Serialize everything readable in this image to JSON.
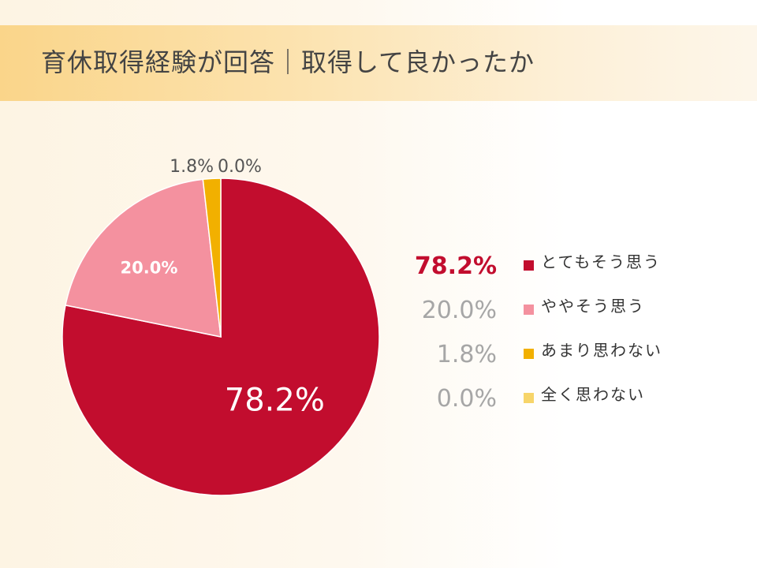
{
  "title": "育休取得経験が回答｜取得して良かったか",
  "colors": {
    "very_much": "#c20d2e",
    "somewhat": "#f4919f",
    "not_much": "#f2b000",
    "not_at_all": "#f7d56a",
    "muted_value": "#a6a6a6"
  },
  "chart_data": {
    "type": "pie",
    "title": "育休取得経験が回答｜取得して良かったか",
    "start_angle": "12 o'clock",
    "direction": "clockwise",
    "legend_position": "right",
    "slices": [
      {
        "label": "とてもそう思う",
        "value": 78.2,
        "display": "78.2%",
        "color": "#c20d2e"
      },
      {
        "label": "ややそう思う",
        "value": 20.0,
        "display": "20.0%",
        "color": "#f4919f"
      },
      {
        "label": "あまり思わない",
        "value": 1.8,
        "display": "1.8%",
        "color": "#f2b000"
      },
      {
        "label": "全く思わない",
        "value": 0.0,
        "display": "0.0%",
        "color": "#f7d56a"
      }
    ]
  }
}
